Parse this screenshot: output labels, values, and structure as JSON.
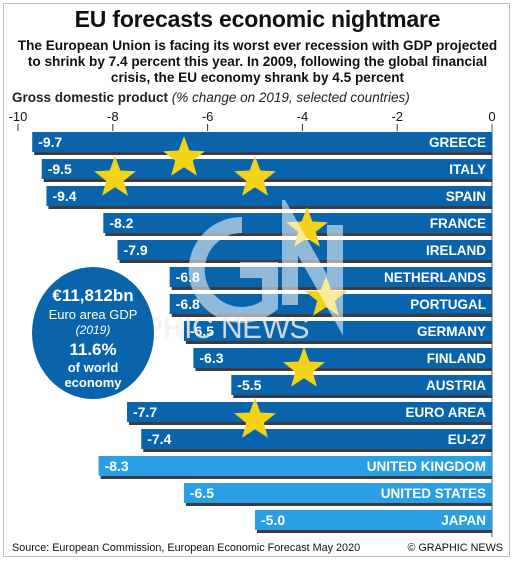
{
  "title": "EU forecasts economic nightmare",
  "subtitle": "The European Union is facing its worst ever recession with GDP projected to shrink by 7.4 percent this year. In 2009, following the global financial crisis, the EU economy shrank by 4.5 percent",
  "axis_heading": {
    "bold": "Gross domestic product",
    "italic": "(% change on 2019, selected countries)"
  },
  "callout": {
    "amount": "€11,812bn",
    "label": "Euro area GDP",
    "year": "(2019)",
    "share": "11.6%",
    "share_line1": "of world",
    "share_line2": "economy"
  },
  "watermark": "GRAPHIC NEWS",
  "source": "Source: European Commission, European Economic Forecast May 2020",
  "credit": "© GRAPHIC NEWS",
  "colors": {
    "eu_bar": "#0a64ab",
    "non_eu_bar": "#2a9fe6",
    "star": "#f3d21a"
  },
  "chart_data": {
    "type": "bar",
    "orientation": "horizontal",
    "xlim": [
      -10,
      0
    ],
    "ticks": [
      "-10",
      "-8",
      "-6",
      "-4",
      "-2",
      "0"
    ],
    "categories": [
      "GREECE",
      "ITALY",
      "SPAIN",
      "FRANCE",
      "IRELAND",
      "NETHERLANDS",
      "PORTUGAL",
      "GERMANY",
      "FINLAND",
      "AUSTRIA",
      "EURO AREA",
      "EU-27",
      "UNITED KINGDOM",
      "UNITED STATES",
      "JAPAN"
    ],
    "values": [
      -9.7,
      -9.5,
      -9.4,
      -8.2,
      -7.9,
      -6.8,
      -6.8,
      -6.5,
      -6.3,
      -5.5,
      -7.7,
      -7.4,
      -8.3,
      -6.5,
      -5.0
    ],
    "value_labels": [
      "-9.7",
      "-9.5",
      "-9.4",
      "-8.2",
      "-7.9",
      "-6.8",
      "-6.8",
      "-6.5",
      "-6.3",
      "-5.5",
      "-7.7",
      "-7.4",
      "-8.3",
      "-6.5",
      "-5.0"
    ],
    "group": [
      "eu",
      "eu",
      "eu",
      "eu",
      "eu",
      "eu",
      "eu",
      "eu",
      "eu",
      "eu",
      "eu",
      "eu",
      "non-eu",
      "non-eu",
      "non-eu"
    ]
  }
}
